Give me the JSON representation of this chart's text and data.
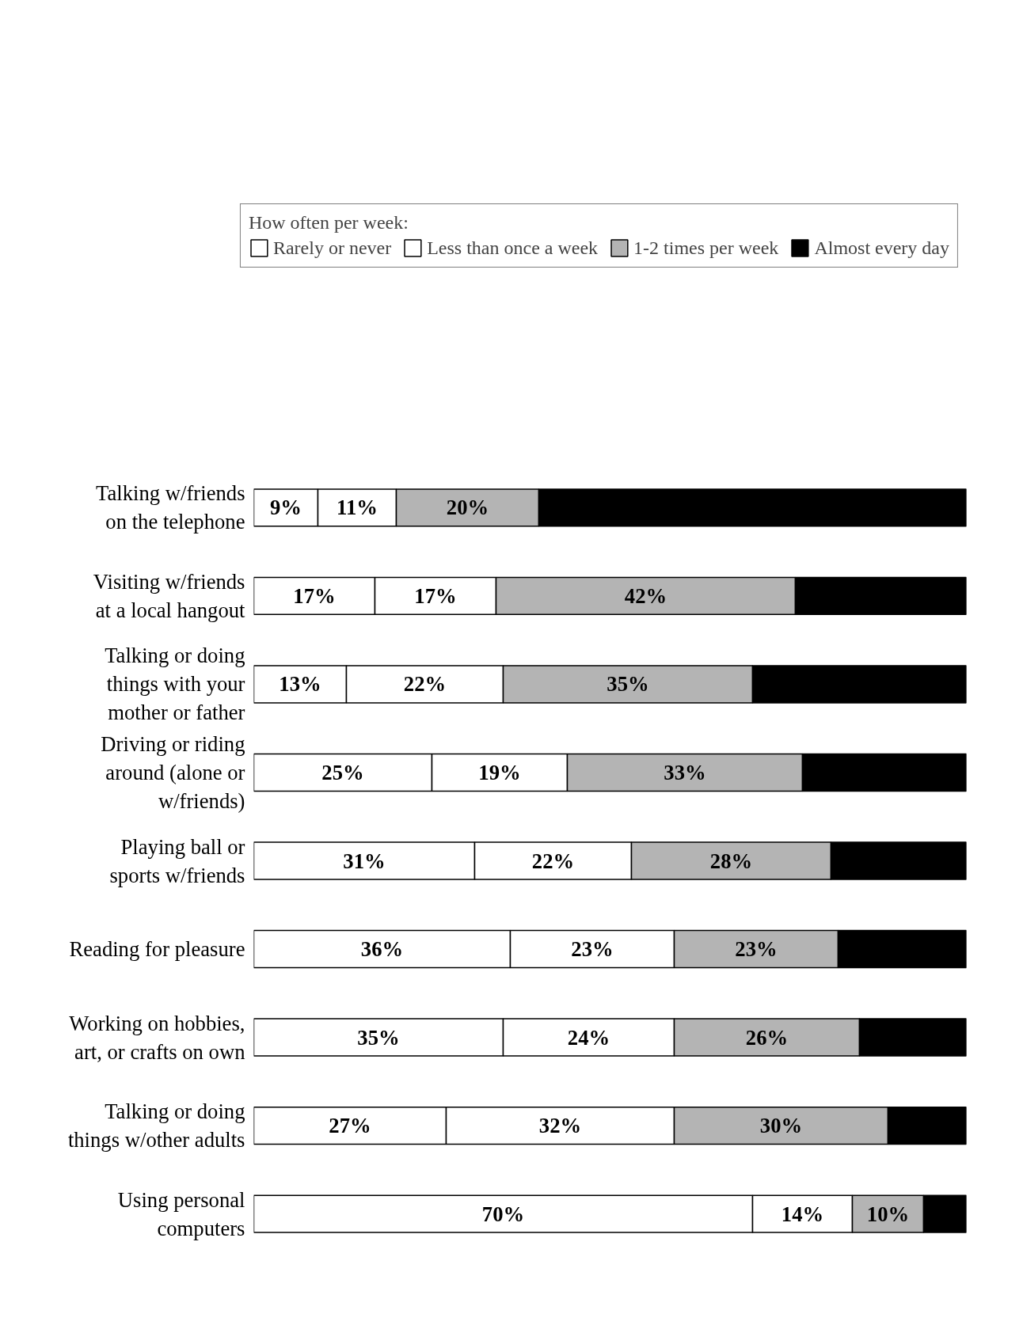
{
  "chart_data": {
    "type": "bar",
    "orientation": "horizontal",
    "stacked": true,
    "legend_title": "How often per week:",
    "legend": "top",
    "tick_labels": "y",
    "grid": false,
    "categories": [
      "Talking w/friends\non the telephone",
      "Visiting w/friends\nat a local hangout",
      "Talking or doing\nthings with your\nmother or father",
      "Driving or riding\naround (alone or\nw/friends)",
      "Playing ball or\nsports w/friends",
      "Reading for pleasure",
      "Working on hobbies,\nart, or crafts on own",
      "Talking or doing\nthings w/other adults",
      "Using personal\ncomputers"
    ],
    "series": [
      {
        "name": "Rarely or never",
        "color": "#ffffff",
        "values": [
          9,
          17,
          13,
          25,
          31,
          36,
          35,
          27,
          70
        ],
        "value_labels": [
          "9%",
          "17%",
          "13%",
          "25%",
          "31%",
          "36%",
          "35%",
          "27%",
          "70%"
        ]
      },
      {
        "name": "Less than once a week",
        "color": "#ffffff",
        "values": [
          11,
          17,
          22,
          19,
          22,
          23,
          24,
          32,
          14
        ],
        "value_labels": [
          "11%",
          "17%",
          "22%",
          "19%",
          "22%",
          "23%",
          "24%",
          "32%",
          "14%"
        ]
      },
      {
        "name": "1-2 times per week",
        "color": "#b4b4b4",
        "values": [
          20,
          42,
          35,
          33,
          28,
          23,
          26,
          30,
          10
        ],
        "value_labels": [
          "20%",
          "42%",
          "35%",
          "33%",
          "28%",
          "23%",
          "26%",
          "30%",
          "10%"
        ]
      },
      {
        "name": "Almost every day",
        "color": "#000000",
        "values": [
          60,
          24,
          30,
          23,
          19,
          18,
          15,
          11,
          6
        ],
        "value_labels": [
          null,
          null,
          null,
          null,
          null,
          null,
          null,
          null,
          null
        ]
      }
    ]
  }
}
